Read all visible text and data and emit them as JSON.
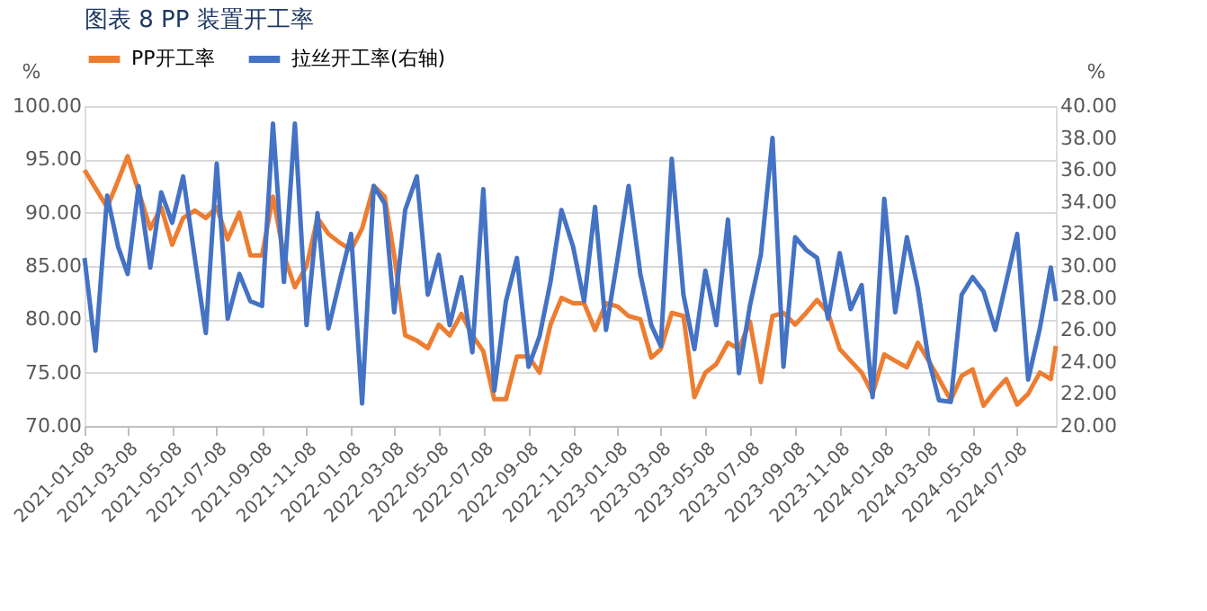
{
  "chart_data": {
    "type": "line",
    "title": "图表 8 PP 装置开工率",
    "ylabel": "%",
    "y2label": "%",
    "x": [
      "2021-01-08",
      "2021-01-23",
      "2021-02-08",
      "2021-02-23",
      "2021-03-08",
      "2021-03-23",
      "2021-04-08",
      "2021-04-23",
      "2021-05-08",
      "2021-05-23",
      "2021-06-08",
      "2021-06-23",
      "2021-07-08",
      "2021-07-23",
      "2021-08-08",
      "2021-08-23",
      "2021-09-08",
      "2021-09-23",
      "2021-10-08",
      "2021-10-23",
      "2021-11-08",
      "2021-11-23",
      "2021-12-08",
      "2021-12-23",
      "2022-01-08",
      "2022-01-23",
      "2022-02-08",
      "2022-02-23",
      "2022-03-08",
      "2022-03-23",
      "2022-04-08",
      "2022-04-23",
      "2022-05-08",
      "2022-05-23",
      "2022-06-08",
      "2022-06-23",
      "2022-07-08",
      "2022-07-23",
      "2022-08-08",
      "2022-08-23",
      "2022-09-08",
      "2022-09-23",
      "2022-10-08",
      "2022-10-23",
      "2022-11-08",
      "2022-11-23",
      "2022-12-08",
      "2022-12-23",
      "2023-01-08",
      "2023-01-23",
      "2023-02-08",
      "2023-02-23",
      "2023-03-08",
      "2023-03-23",
      "2023-04-08",
      "2023-04-23",
      "2023-05-08",
      "2023-05-23",
      "2023-06-08",
      "2023-06-23",
      "2023-07-08",
      "2023-07-23",
      "2023-08-08",
      "2023-08-23",
      "2023-09-08",
      "2023-09-23",
      "2023-10-08",
      "2023-10-23",
      "2023-11-08",
      "2023-11-23",
      "2023-12-08",
      "2023-12-23",
      "2024-01-08",
      "2024-01-23",
      "2024-02-08",
      "2024-02-23",
      "2024-03-08",
      "2024-03-23",
      "2024-04-08",
      "2024-04-23",
      "2024-05-08",
      "2024-05-23",
      "2024-06-08",
      "2024-06-23",
      "2024-07-08",
      "2024-07-23",
      "2024-08-08",
      "2024-08-23",
      "2024-08-30"
    ],
    "series": [
      {
        "name": "PP开工率",
        "color": "#ed7d31",
        "values": [
          94,
          92.3,
          90.5,
          93,
          95.3,
          92,
          88.5,
          90.5,
          87,
          89.5,
          90.2,
          89.5,
          90.5,
          87.5,
          90,
          86,
          86,
          91.5,
          86,
          83,
          85,
          89.5,
          88,
          87.2,
          86.5,
          88.5,
          92.5,
          91.5,
          86,
          78.5,
          78,
          77.3,
          79.5,
          78.5,
          80.5,
          78.5,
          77,
          72.5,
          72.5,
          76.5,
          76.5,
          75,
          79.5,
          82,
          81.5,
          81.5,
          79,
          81.5,
          81.2,
          80.3,
          80,
          76.4,
          77.2,
          80.6,
          80.3,
          72.7,
          75,
          75.8,
          77.8,
          77.2,
          79.8,
          74.1,
          80.3,
          80.6,
          79.5,
          80.6,
          81.8,
          80.6,
          77.2,
          76.1,
          75,
          73,
          76.7,
          76.1,
          75.5,
          77.8,
          76.2,
          74.4,
          72.4,
          74.7,
          75.3,
          71.9,
          73.3,
          74.4,
          72,
          73,
          75,
          74.4,
          77.5
        ]
      },
      {
        "name": "拉丝开工率(右轴)",
        "color": "#4472c4",
        "axis": "y2",
        "values": [
          30.5,
          24.7,
          34.4,
          31.2,
          29.5,
          35,
          29.9,
          34.6,
          32.7,
          35.6,
          30.5,
          25.8,
          36.4,
          26.7,
          29.5,
          27.8,
          27.5,
          38.9,
          29,
          38.9,
          26.3,
          33.3,
          26.1,
          29,
          32,
          21.4,
          35,
          33.9,
          27.1,
          33.5,
          35.6,
          28.2,
          30.7,
          26.3,
          29.3,
          24.6,
          34.8,
          22.2,
          27.8,
          30.5,
          23.7,
          25.6,
          29,
          33.5,
          31.2,
          27.8,
          33.7,
          26,
          30.5,
          35,
          29.5,
          26.3,
          25,
          36.7,
          28.2,
          24.8,
          29.7,
          26.3,
          32.9,
          23.3,
          27.5,
          30.7,
          38,
          23.7,
          31.8,
          31,
          30.5,
          26.7,
          30.8,
          27.3,
          28.8,
          21.8,
          34.2,
          27.1,
          31.8,
          28.6,
          24.3,
          21.6,
          21.5,
          28.2,
          29.3,
          28.4,
          26,
          29,
          32,
          22.9,
          26.1,
          29.9,
          27.8
        ]
      }
    ],
    "xlim": [
      "2021-01-08",
      "2024-08-30"
    ],
    "xticks": [
      "2021-01-08",
      "2021-03-08",
      "2021-05-08",
      "2021-07-08",
      "2021-09-08",
      "2021-11-08",
      "2022-01-08",
      "2022-03-08",
      "2022-05-08",
      "2022-07-08",
      "2022-09-08",
      "2022-11-08",
      "2023-01-08",
      "2023-03-08",
      "2023-05-08",
      "2023-07-08",
      "2023-09-08",
      "2023-11-08",
      "2024-01-08",
      "2024-03-08",
      "2024-05-08",
      "2024-07-08"
    ],
    "ylim": [
      70,
      100
    ],
    "yticks": [
      {
        "value": 70,
        "label": "70.00"
      },
      {
        "value": 75,
        "label": "75.00"
      },
      {
        "value": 80,
        "label": "80.00"
      },
      {
        "value": 85,
        "label": "85.00"
      },
      {
        "value": 90,
        "label": "90.00"
      },
      {
        "value": 95,
        "label": "95.00"
      },
      {
        "value": 100,
        "label": "100.00"
      }
    ],
    "y2lim": [
      20,
      40
    ],
    "y2ticks": [
      {
        "value": 20,
        "label": "20.00"
      },
      {
        "value": 22,
        "label": "22.00"
      },
      {
        "value": 24,
        "label": "24.00"
      },
      {
        "value": 26,
        "label": "26.00"
      },
      {
        "value": 28,
        "label": "28.00"
      },
      {
        "value": 30,
        "label": "30.00"
      },
      {
        "value": 32,
        "label": "32.00"
      },
      {
        "value": 34,
        "label": "34.00"
      },
      {
        "value": 36,
        "label": "36.00"
      },
      {
        "value": 38,
        "label": "38.00"
      },
      {
        "value": 40,
        "label": "40.00"
      }
    ],
    "grid": "y",
    "legend": "top",
    "marker": "none",
    "line_style": "solid"
  }
}
